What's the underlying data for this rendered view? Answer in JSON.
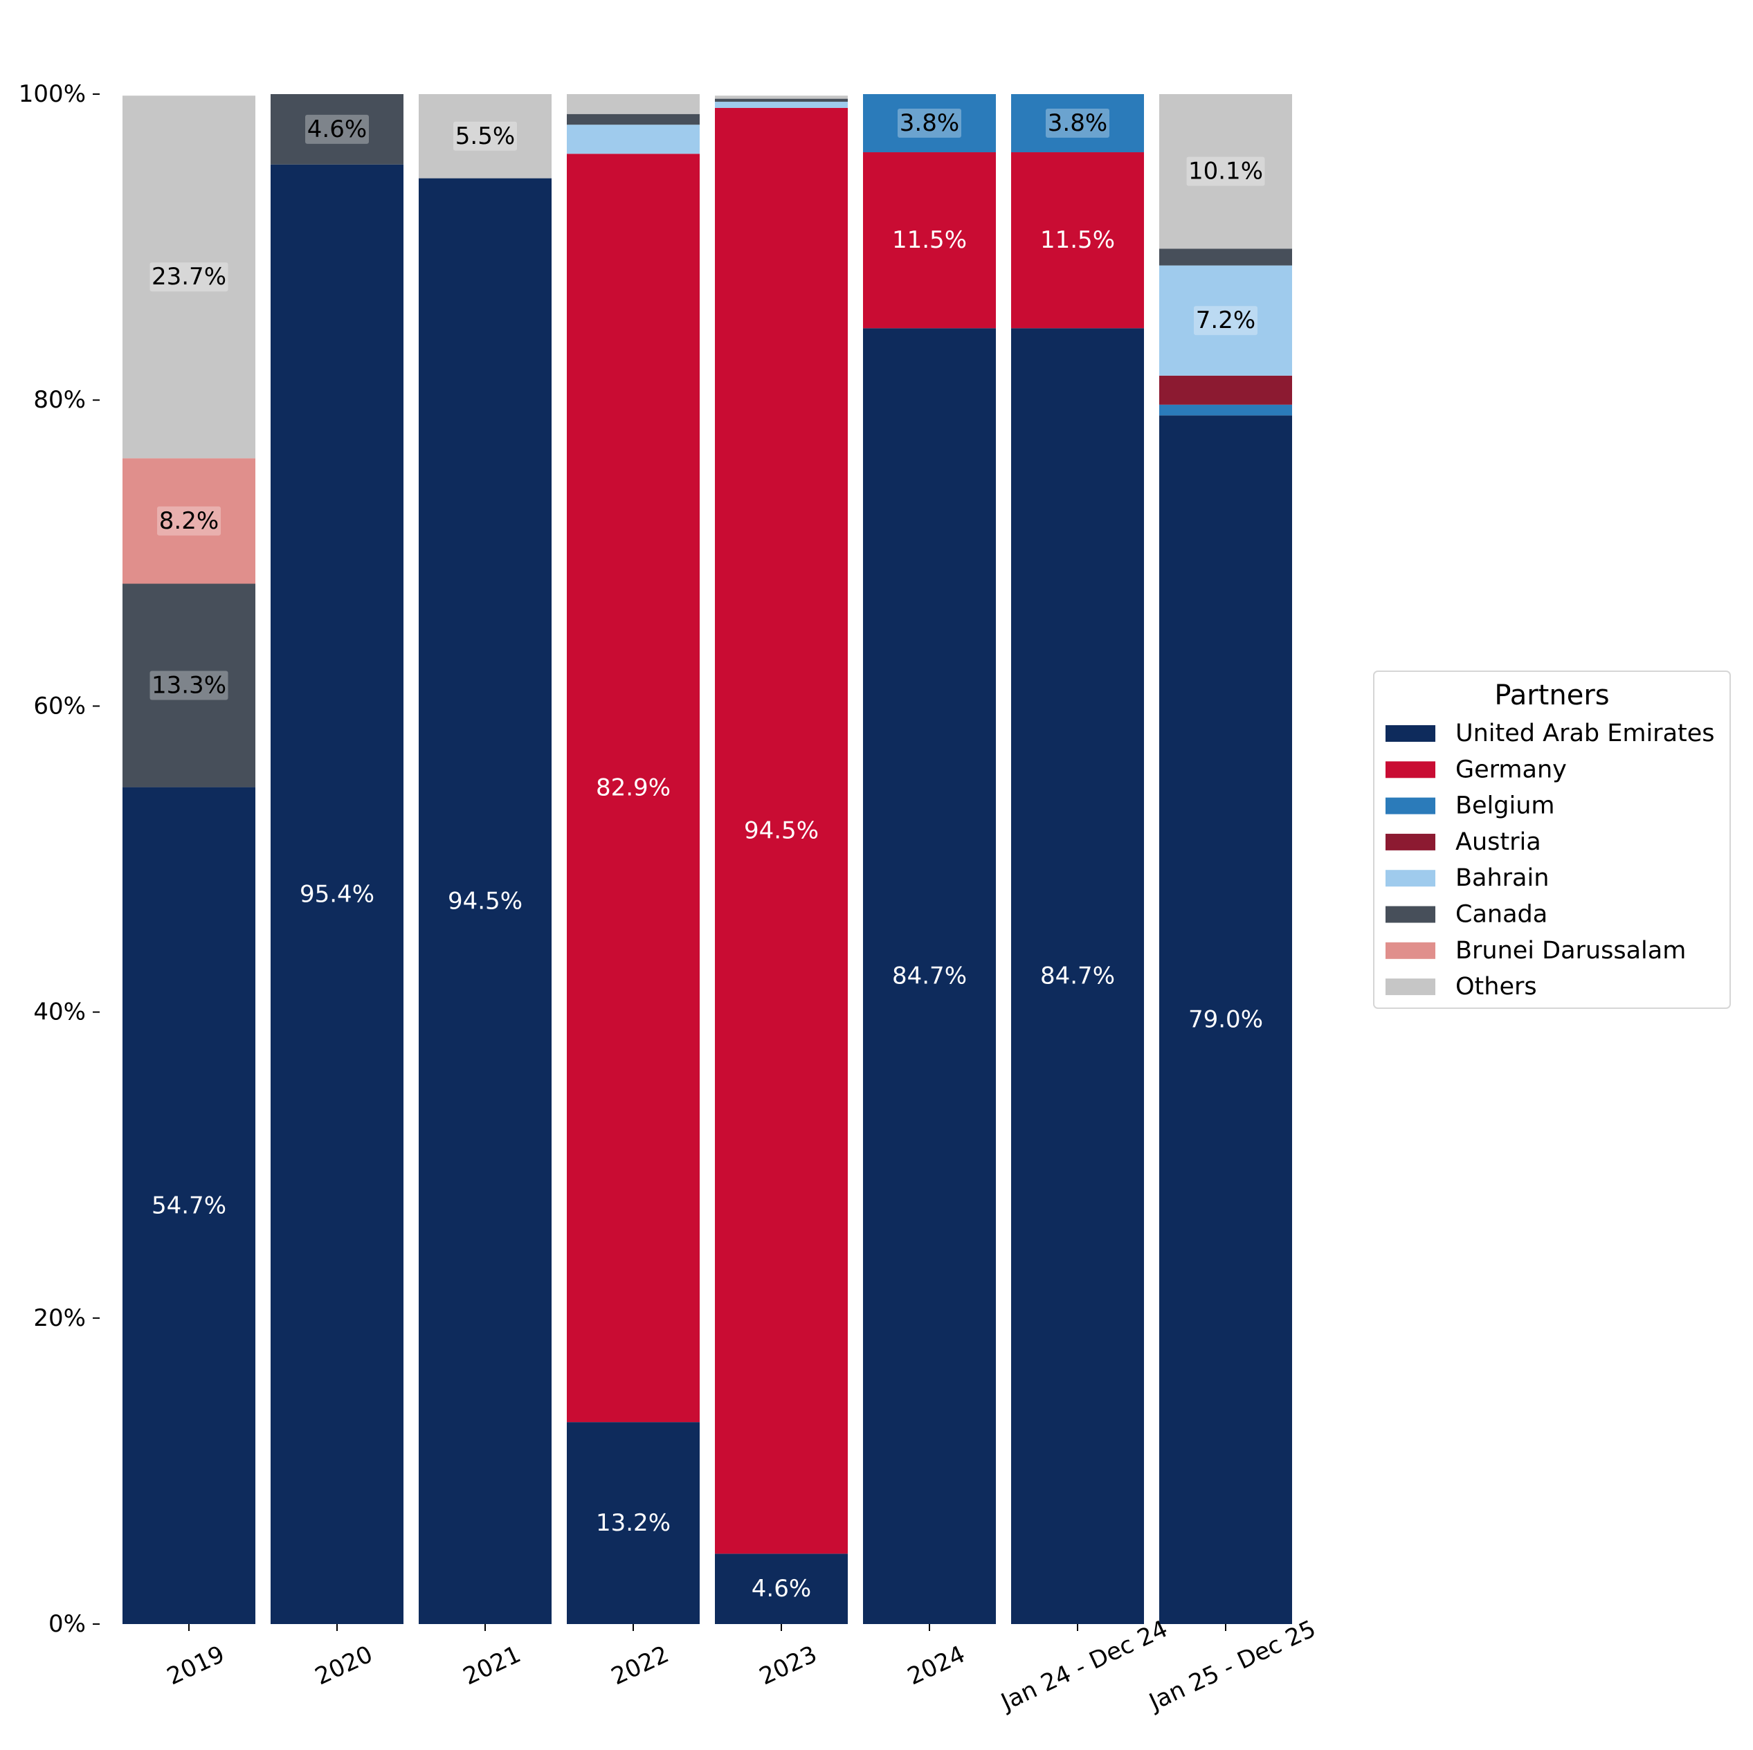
{
  "chart_data": {
    "type": "bar",
    "stacked": true,
    "normalized": true,
    "categories": [
      "2019",
      "2020",
      "2021",
      "2022",
      "2023",
      "2024",
      "Jan 24 - Dec 24",
      "Jan 25 - Dec 25"
    ],
    "ylim": [
      0,
      100
    ],
    "y_ticks": [
      "0%",
      "20%",
      "40%",
      "60%",
      "80%",
      "100%"
    ],
    "grid": false,
    "legend_placement": "center-right",
    "legend_title": "Partners",
    "series": [
      {
        "name": "United Arab Emirates",
        "color": "#0e2b5c",
        "values": [
          54.7,
          95.4,
          94.5,
          13.2,
          4.6,
          84.7,
          84.7,
          79.0
        ]
      },
      {
        "name": "Germany",
        "color": "#c90c33",
        "values": [
          0,
          0,
          0,
          82.9,
          94.5,
          11.5,
          11.5,
          0
        ]
      },
      {
        "name": "Belgium",
        "color": "#2b7bba",
        "values": [
          0,
          0,
          0,
          0,
          0,
          3.8,
          3.8,
          0.7
        ]
      },
      {
        "name": "Austria",
        "color": "#8c1a31",
        "values": [
          0,
          0,
          0,
          0,
          0,
          0,
          0,
          1.9
        ]
      },
      {
        "name": "Bahrain",
        "color": "#9fcbed",
        "values": [
          0,
          0,
          0,
          1.9,
          0.4,
          0,
          0,
          7.2
        ]
      },
      {
        "name": "Canada",
        "color": "#474f5a",
        "values": [
          13.3,
          4.6,
          0,
          0.7,
          0.2,
          0,
          0,
          1.1
        ]
      },
      {
        "name": "Brunei Darussalam",
        "color": "#e08f8c",
        "values": [
          8.2,
          0,
          0,
          0,
          0,
          0,
          0,
          0
        ]
      },
      {
        "name": "Others",
        "color": "#c6c6c6",
        "values": [
          23.7,
          0,
          5.5,
          1.3,
          0.2,
          0,
          0,
          10.1
        ]
      }
    ],
    "data_labels": [
      [
        "54.7%",
        "",
        "",
        "",
        "",
        "13.3%",
        "8.2%",
        "23.7%"
      ],
      [
        "95.4%",
        "",
        "",
        "",
        "",
        "4.6%",
        "",
        ""
      ],
      [
        "94.5%",
        "",
        "",
        "",
        "",
        "",
        "",
        "5.5%"
      ],
      [
        "13.2%",
        "82.9%",
        "",
        "",
        "",
        "",
        "",
        ""
      ],
      [
        "4.6%",
        "94.5%",
        "",
        "",
        "",
        "",
        "",
        ""
      ],
      [
        "84.7%",
        "11.5%",
        "3.8%",
        "",
        "",
        "",
        "",
        ""
      ],
      [
        "84.7%",
        "11.5%",
        "3.8%",
        "",
        "",
        "",
        "",
        ""
      ],
      [
        "79.0%",
        "",
        "",
        "",
        "7.2%",
        "",
        "",
        "10.1%"
      ]
    ]
  }
}
